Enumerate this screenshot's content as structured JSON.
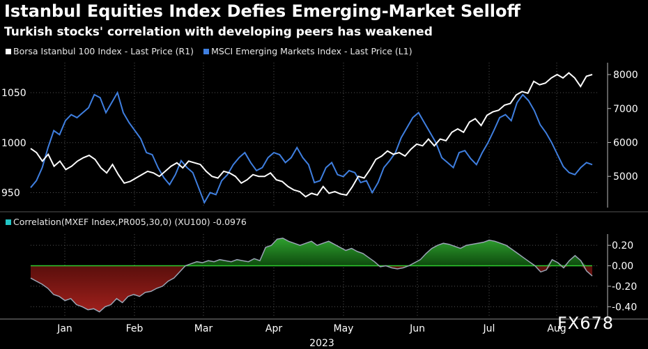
{
  "header": {
    "title": "Istanbul Equities Index Defies Emerging-Market Selloff",
    "subtitle": "Turkish stocks' correlation with developing peers has weakened"
  },
  "watermark": "FX678",
  "chart_data": [
    {
      "type": "line",
      "panel": "top",
      "title": "Istanbul Equities Index Defies Emerging-Market Selloff",
      "subtitle": "Turkish stocks' correlation with developing peers has weakened",
      "x_ticks": [
        "Jan",
        "Feb",
        "Mar",
        "Apr",
        "May",
        "Jun",
        "Jul",
        "Aug"
      ],
      "xlabel": "2023",
      "left_axis": {
        "ticks": [
          "1050",
          "1000",
          "950"
        ],
        "range": [
          935,
          1080
        ]
      },
      "right_axis": {
        "ticks": [
          "8000",
          "7000",
          "6000",
          "5000"
        ],
        "range": [
          4080,
          8350
        ]
      },
      "series": [
        {
          "name": "Borsa Istanbul 100 Index - Last Price (R1)",
          "axis": "right",
          "color": "#ffffff",
          "values": [
            5820,
            5700,
            5450,
            5650,
            5300,
            5450,
            5200,
            5300,
            5450,
            5550,
            5620,
            5500,
            5250,
            5100,
            5350,
            5050,
            4800,
            4850,
            4950,
            5050,
            5150,
            5100,
            5000,
            5150,
            5300,
            5400,
            5250,
            5450,
            5400,
            5350,
            5150,
            5000,
            4950,
            5150,
            5100,
            5000,
            4800,
            4900,
            5050,
            5000,
            5000,
            5100,
            4900,
            4850,
            4700,
            4600,
            4550,
            4400,
            4500,
            4450,
            4700,
            4500,
            4550,
            4480,
            4450,
            4700,
            5000,
            4950,
            5200,
            5500,
            5600,
            5750,
            5650,
            5700,
            5600,
            5800,
            5950,
            5900,
            6100,
            5900,
            6100,
            6050,
            6300,
            6400,
            6300,
            6600,
            6700,
            6500,
            6800,
            6900,
            6950,
            7100,
            7150,
            7400,
            7500,
            7450,
            7800,
            7700,
            7750,
            7900,
            8000,
            7900,
            8050,
            7900,
            7650,
            7950,
            8000
          ]
        },
        {
          "name": "MSCI Emerging Markets Index - Last Price (L1)",
          "axis": "left",
          "color": "#3f7fe0",
          "values": [
            955,
            962,
            975,
            995,
            1012,
            1008,
            1022,
            1028,
            1025,
            1030,
            1035,
            1048,
            1045,
            1030,
            1040,
            1050,
            1030,
            1020,
            1012,
            1004,
            990,
            988,
            975,
            965,
            958,
            968,
            982,
            975,
            970,
            955,
            940,
            950,
            948,
            962,
            968,
            978,
            985,
            990,
            980,
            972,
            975,
            985,
            990,
            988,
            980,
            985,
            995,
            985,
            978,
            960,
            962,
            975,
            980,
            968,
            966,
            972,
            970,
            960,
            962,
            950,
            960,
            975,
            982,
            990,
            1005,
            1015,
            1025,
            1030,
            1020,
            1010,
            1000,
            985,
            980,
            975,
            990,
            992,
            984,
            978,
            990,
            1000,
            1012,
            1025,
            1028,
            1022,
            1040,
            1048,
            1042,
            1032,
            1018,
            1010,
            1000,
            988,
            976,
            970,
            968,
            975,
            980,
            978
          ]
        }
      ]
    },
    {
      "type": "area",
      "panel": "bottom",
      "title": "Correlation(MXEF Index,PR005,30,0) (XU100) -0.0976",
      "legend": "Correlation(MXEF Index,PR005,30,0) (XU100) -0.0976",
      "legend_color": "#22c6c6",
      "y_axis": {
        "ticks": [
          "0.20",
          "0.00",
          "-0.20",
          "-0.40"
        ],
        "range": [
          -0.5,
          0.31
        ]
      },
      "positive_color": "#2ea02e",
      "negative_color": "#a0201c",
      "values": [
        -0.12,
        -0.15,
        -0.18,
        -0.22,
        -0.28,
        -0.3,
        -0.34,
        -0.32,
        -0.38,
        -0.4,
        -0.43,
        -0.42,
        -0.45,
        -0.4,
        -0.38,
        -0.32,
        -0.36,
        -0.3,
        -0.28,
        -0.3,
        -0.26,
        -0.25,
        -0.22,
        -0.2,
        -0.15,
        -0.12,
        -0.06,
        0.0,
        0.02,
        0.04,
        0.03,
        0.05,
        0.04,
        0.06,
        0.05,
        0.04,
        0.06,
        0.05,
        0.04,
        0.07,
        0.05,
        0.18,
        0.2,
        0.26,
        0.27,
        0.24,
        0.22,
        0.2,
        0.22,
        0.24,
        0.2,
        0.22,
        0.24,
        0.21,
        0.18,
        0.15,
        0.17,
        0.14,
        0.12,
        0.08,
        0.04,
        -0.01,
        0.0,
        -0.02,
        -0.03,
        -0.02,
        0.0,
        0.03,
        0.06,
        0.12,
        0.17,
        0.2,
        0.22,
        0.21,
        0.19,
        0.17,
        0.2,
        0.21,
        0.22,
        0.23,
        0.25,
        0.24,
        0.22,
        0.2,
        0.16,
        0.12,
        0.08,
        0.04,
        0.0,
        -0.06,
        -0.04,
        0.06,
        0.03,
        -0.02,
        0.05,
        0.1,
        0.05,
        -0.05,
        -0.1
      ]
    }
  ]
}
